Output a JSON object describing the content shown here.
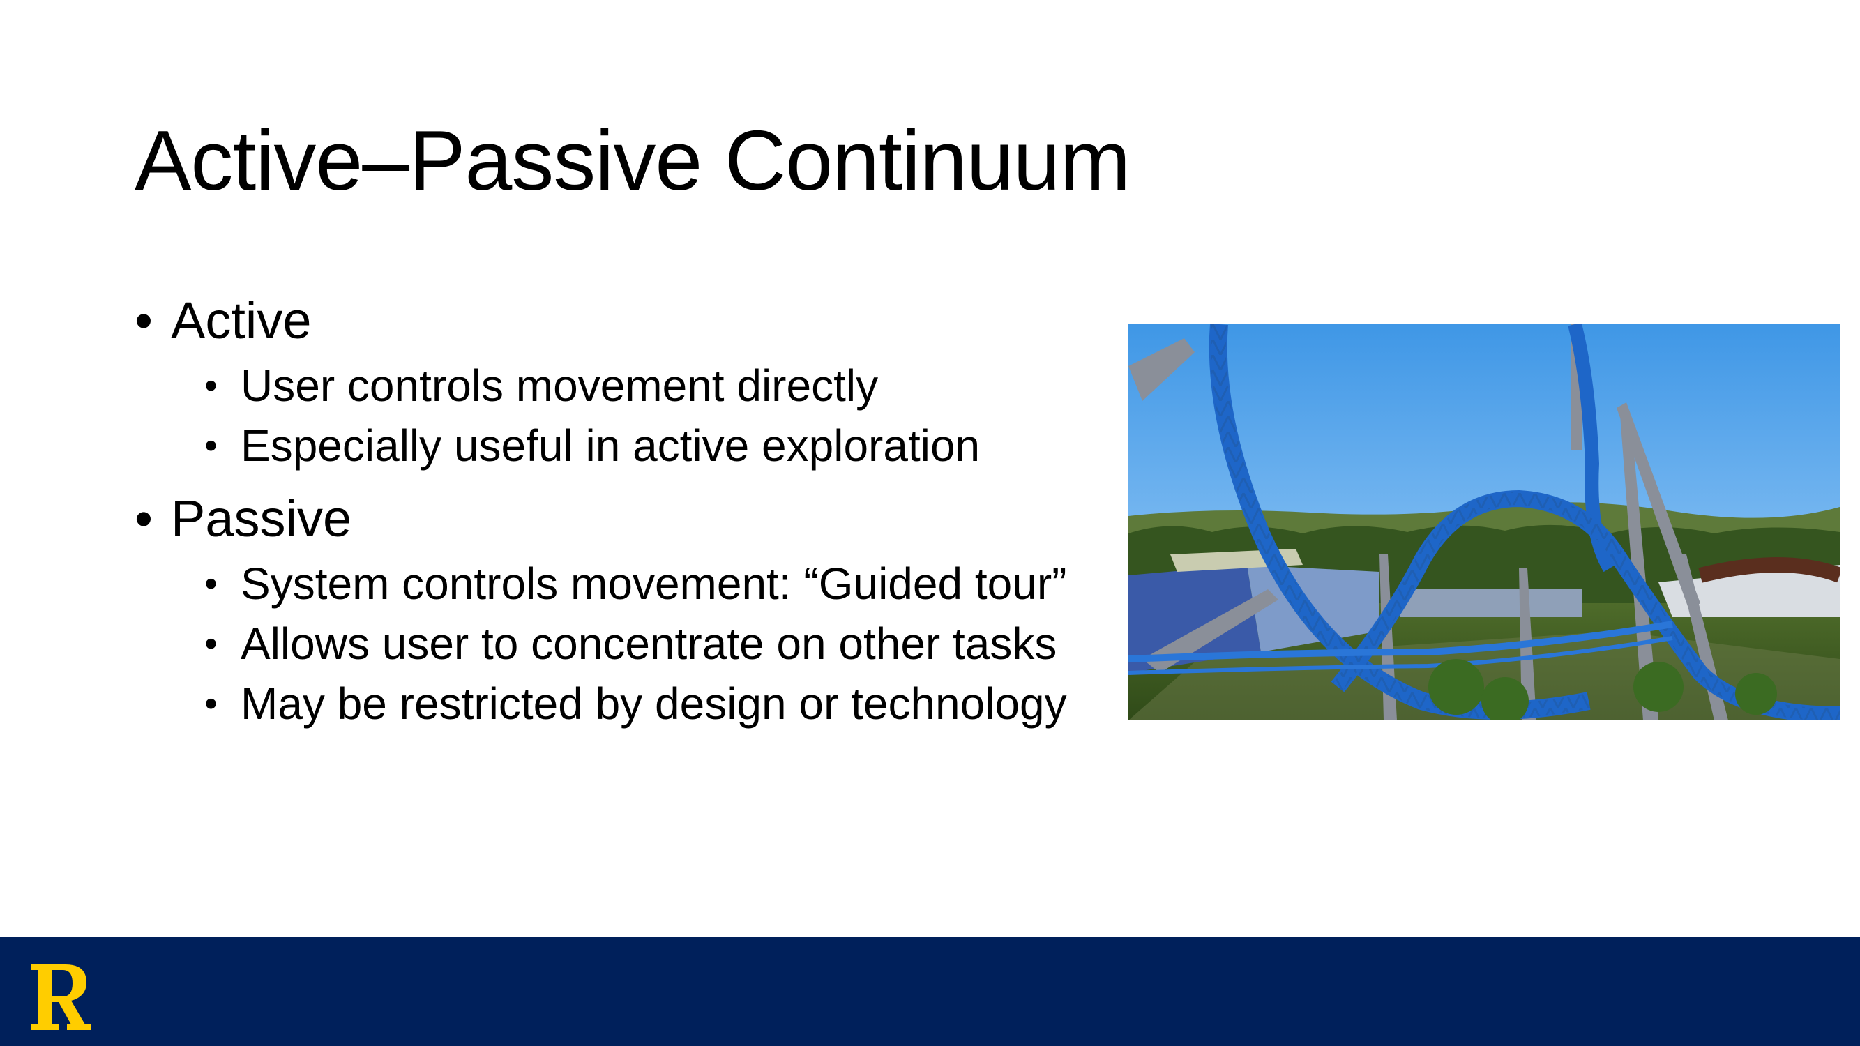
{
  "slide": {
    "title": "Active–Passive Continuum",
    "bullets": [
      {
        "label": "Active",
        "sub": [
          "User controls movement directly",
          "Especially useful in active exploration"
        ]
      },
      {
        "label": "Passive",
        "sub": [
          "System controls movement: “Guided tour”",
          "Allows user to concentrate on other tasks",
          "May be restricted by design or technology"
        ]
      }
    ],
    "bullet_glyph": "•"
  },
  "image": {
    "subject": "roller-coaster-loop-virtual-scene"
  },
  "footer": {
    "logo_letter": "R",
    "background_color": "#00205b",
    "logo_color": "#ffcd00"
  }
}
